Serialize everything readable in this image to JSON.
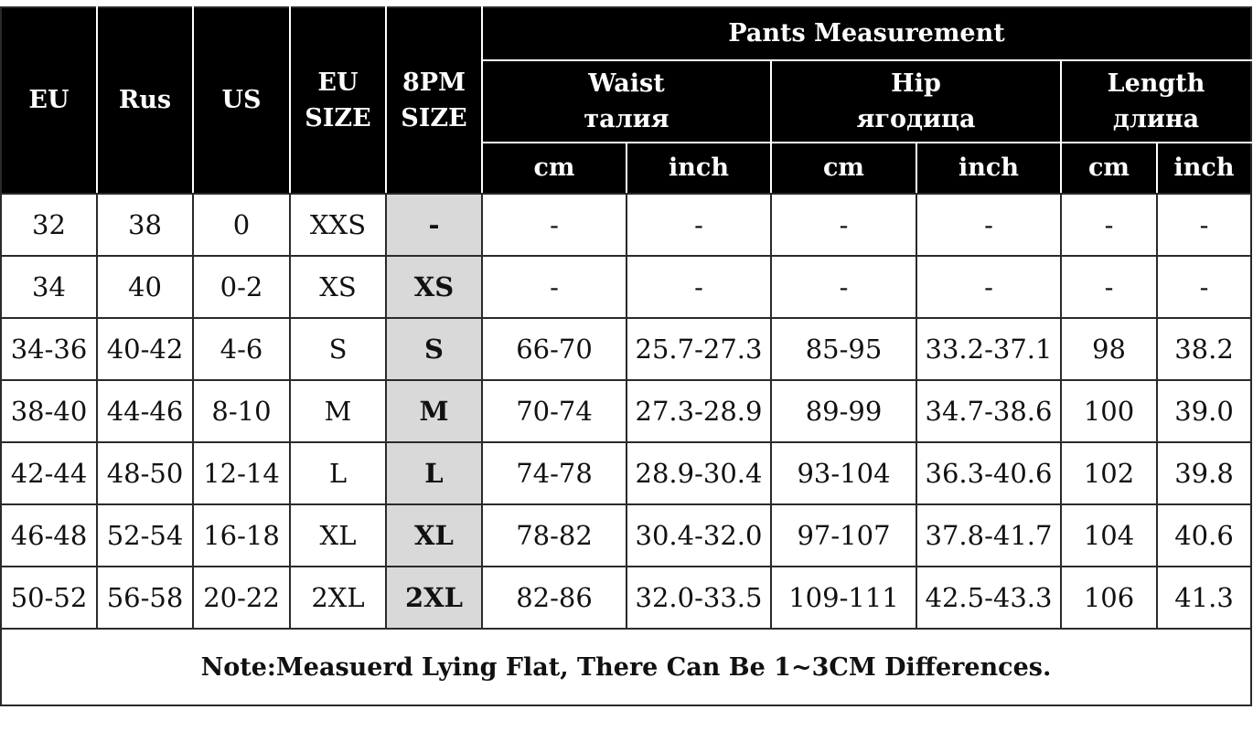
{
  "header": {
    "eu": "EU",
    "rus": "Rus",
    "us": "US",
    "eu_size": [
      "EU",
      "SIZE"
    ],
    "pm_size": [
      "8PM",
      "SIZE"
    ],
    "group_title": "Pants Measurement",
    "waist": [
      "Waist",
      "талия"
    ],
    "hip": [
      "Hip",
      "ягодица"
    ],
    "length": [
      "Length",
      "длина"
    ],
    "units": [
      "cm",
      "inch",
      "cm",
      "inch",
      "cm",
      "inch"
    ]
  },
  "rows": [
    [
      "32",
      "38",
      "0",
      "XXS",
      "-",
      "-",
      "-",
      "-",
      "-",
      "-",
      "-"
    ],
    [
      "34",
      "40",
      "0-2",
      "XS",
      "XS",
      "-",
      "-",
      "-",
      "-",
      "-",
      "-"
    ],
    [
      "34-36",
      "40-42",
      "4-6",
      "S",
      "S",
      "66-70",
      "25.7-27.3",
      "85-95",
      "33.2-37.1",
      "98",
      "38.2"
    ],
    [
      "38-40",
      "44-46",
      "8-10",
      "M",
      "M",
      "70-74",
      "27.3-28.9",
      "89-99",
      "34.7-38.6",
      "100",
      "39.0"
    ],
    [
      "42-44",
      "48-50",
      "12-14",
      "L",
      "L",
      "74-78",
      "28.9-30.4",
      "93-104",
      "36.3-40.6",
      "102",
      "39.8"
    ],
    [
      "46-48",
      "52-54",
      "16-18",
      "XL",
      "XL",
      "78-82",
      "30.4-32.0",
      "97-107",
      "37.8-41.7",
      "104",
      "40.6"
    ],
    [
      "50-52",
      "56-58",
      "20-22",
      "2XL",
      "2XL",
      "82-86",
      "32.0-33.5",
      "109-111",
      "42.5-43.3",
      "106",
      "41.3"
    ]
  ],
  "note": "Note:Measuerd Lying Flat, There Can Be 1~3CM Differences.",
  "colors": {
    "header_bg": "#000000",
    "header_text": "#ffffff",
    "highlight_column": "#d9d9d9"
  }
}
